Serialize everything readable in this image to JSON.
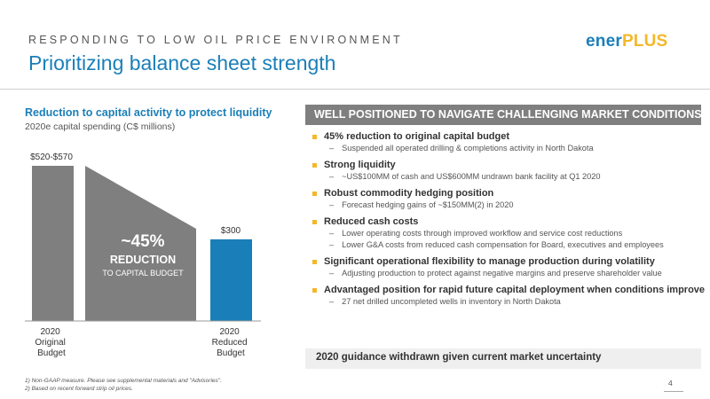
{
  "header": {
    "kicker": "RESPONDING TO LOW OIL PRICE ENVIRONMENT",
    "title": "Prioritizing balance sheet strength",
    "logo_part1": "ener",
    "logo_part2": "PLUS"
  },
  "colors": {
    "accent": "#1a7fb8",
    "bar_grey": "#7f7f7f",
    "bar_blue": "#1a7fb8",
    "bullet": "#f3b82a"
  },
  "chart": {
    "title": "Reduction to capital activity to protect liquidity",
    "subtitle": "2020e capital spending (C$ millions)",
    "reduction_pct": "~45%",
    "reduction_label": "REDUCTION",
    "reduction_sub": "TO CAPITAL BUDGET"
  },
  "chart_data": {
    "type": "bar",
    "categories": [
      "2020 Original Budget",
      "2020 Reduced Budget"
    ],
    "category_lines": [
      [
        "2020",
        "Original",
        "Budget"
      ],
      [
        "2020",
        "Reduced",
        "Budget"
      ]
    ],
    "values": [
      570,
      300
    ],
    "value_labels": [
      "$520-$570",
      "$300"
    ],
    "ylim": [
      0,
      570
    ],
    "title": "Reduction to capital activity to protect liquidity",
    "ylabel": "2020e capital spending (C$ millions)"
  },
  "panel": {
    "heading": "WELL POSITIONED TO NAVIGATE CHALLENGING MARKET CONDITIONS",
    "bullets": [
      {
        "title": "45% reduction to original capital budget",
        "subs": [
          "Suspended all operated drilling & completions activity in North Dakota"
        ]
      },
      {
        "title": "Strong liquidity",
        "subs": [
          "~US$100MM of cash and US$600MM undrawn bank facility at Q1 2020"
        ]
      },
      {
        "title": "Robust commodity hedging position",
        "subs": [
          "Forecast hedging gains of ~$150MM(2) in 2020"
        ]
      },
      {
        "title": "Reduced cash costs",
        "subs": [
          "Lower operating costs through improved workflow and service cost reductions",
          "Lower G&A costs from reduced cash compensation for Board, executives and employees"
        ]
      },
      {
        "title": "Significant operational flexibility to manage production during volatility",
        "subs": [
          "Adjusting production to protect against negative margins and preserve shareholder value"
        ]
      },
      {
        "title": "Advantaged position for rapid future capital deployment when conditions improve",
        "subs": [
          "27 net drilled uncompleted wells in inventory in North Dakota"
        ]
      }
    ],
    "footer": "2020 guidance withdrawn given current market uncertainty"
  },
  "notes": [
    "1)  Non-GAAP measure. Please see supplemental materials and \"Advisories\".",
    "2)  Based on recent forward strip oil prices."
  ],
  "page_number": "4"
}
